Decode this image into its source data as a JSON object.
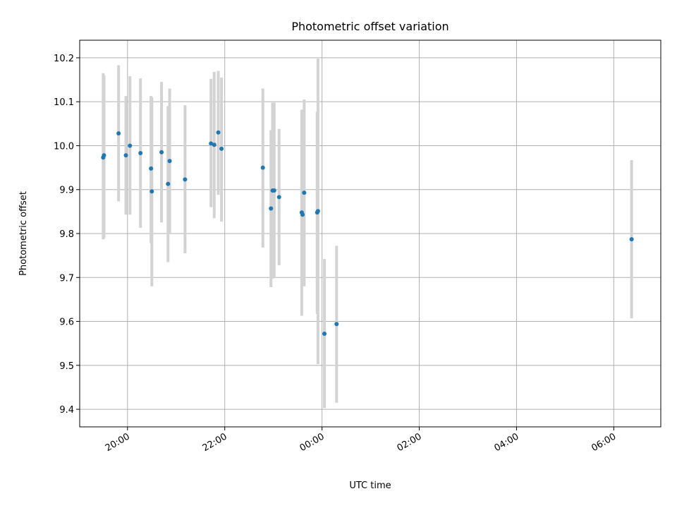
{
  "chart_data": {
    "type": "scatter",
    "title": "Photometric offset variation",
    "xlabel": "UTC time",
    "ylabel": "Photometric offset",
    "x_tick_labels": [
      "20:00",
      "22:00",
      "00:00",
      "02:00",
      "04:00",
      "06:00"
    ],
    "y_tick_labels": [
      "9.4",
      "9.5",
      "9.6",
      "9.7",
      "9.8",
      "9.9",
      "10.0",
      "10.1",
      "10.2"
    ],
    "xlim": [
      "19:01",
      "06:58"
    ],
    "ylim": [
      9.36,
      10.24
    ],
    "grid": true,
    "colors": {
      "point": "#1f77b4",
      "errorbar": "#d3d3d3",
      "grid": "#b0b0b0"
    },
    "points": [
      {
        "x": "19:30",
        "y": 9.973,
        "ylo": 9.787,
        "yhi": 10.165
      },
      {
        "x": "19:31",
        "y": 9.978,
        "ylo": 9.79,
        "yhi": 10.16
      },
      {
        "x": "19:49",
        "y": 10.028,
        "ylo": 9.873,
        "yhi": 10.183
      },
      {
        "x": "19:58",
        "y": 9.978,
        "ylo": 9.843,
        "yhi": 10.113
      },
      {
        "x": "20:03",
        "y": 10.0,
        "ylo": 9.843,
        "yhi": 10.158
      },
      {
        "x": "20:16",
        "y": 9.983,
        "ylo": 9.813,
        "yhi": 10.153
      },
      {
        "x": "20:29",
        "y": 9.948,
        "ylo": 9.778,
        "yhi": 10.113
      },
      {
        "x": "20:30",
        "y": 9.896,
        "ylo": 9.68,
        "yhi": 10.11
      },
      {
        "x": "20:42",
        "y": 9.985,
        "ylo": 9.825,
        "yhi": 10.145
      },
      {
        "x": "20:50",
        "y": 9.913,
        "ylo": 9.735,
        "yhi": 10.09
      },
      {
        "x": "20:52",
        "y": 9.965,
        "ylo": 9.8,
        "yhi": 10.13
      },
      {
        "x": "21:11",
        "y": 9.923,
        "ylo": 9.755,
        "yhi": 10.092
      },
      {
        "x": "21:43",
        "y": 10.005,
        "ylo": 9.86,
        "yhi": 10.152
      },
      {
        "x": "21:47",
        "y": 10.002,
        "ylo": 9.835,
        "yhi": 10.168
      },
      {
        "x": "21:52",
        "y": 10.03,
        "ylo": 9.888,
        "yhi": 10.17
      },
      {
        "x": "21:56",
        "y": 9.993,
        "ylo": 9.827,
        "yhi": 10.155
      },
      {
        "x": "22:47",
        "y": 9.95,
        "ylo": 9.768,
        "yhi": 10.13
      },
      {
        "x": "22:57",
        "y": 9.857,
        "ylo": 9.678,
        "yhi": 10.035
      },
      {
        "x": "22:59",
        "y": 9.898,
        "ylo": 9.697,
        "yhi": 10.098
      },
      {
        "x": "23:01",
        "y": 9.898,
        "ylo": 9.7,
        "yhi": 10.098
      },
      {
        "x": "23:07",
        "y": 9.883,
        "ylo": 9.728,
        "yhi": 10.038
      },
      {
        "x": "23:35",
        "y": 9.848,
        "ylo": 9.613,
        "yhi": 10.082
      },
      {
        "x": "23:36",
        "y": 9.843,
        "ylo": 9.68,
        "yhi": 10.007
      },
      {
        "x": "23:38",
        "y": 9.893,
        "ylo": 9.68,
        "yhi": 10.105
      },
      {
        "x": "23:54",
        "y": 9.848,
        "ylo": 9.617,
        "yhi": 10.077
      },
      {
        "x": "23:55",
        "y": 9.851,
        "ylo": 9.503,
        "yhi": 10.198
      },
      {
        "x": "00:03",
        "y": 9.572,
        "ylo": 9.403,
        "yhi": 9.742
      },
      {
        "x": "00:18",
        "y": 9.594,
        "ylo": 9.415,
        "yhi": 9.772
      },
      {
        "x": "06:22",
        "y": 9.787,
        "ylo": 9.607,
        "yhi": 9.967
      }
    ]
  }
}
